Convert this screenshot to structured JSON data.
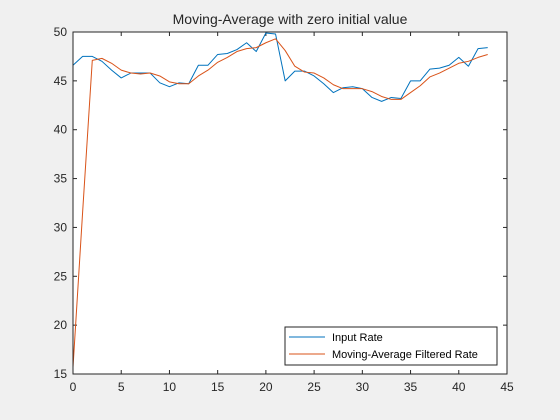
{
  "chart_data": {
    "type": "line",
    "title": "Moving-Average with zero initial value",
    "xlabel": "",
    "ylabel": "",
    "xlim": [
      0,
      45
    ],
    "ylim": [
      15,
      50
    ],
    "xticks": [
      0,
      5,
      10,
      15,
      20,
      25,
      30,
      35,
      40,
      45
    ],
    "yticks": [
      15,
      20,
      25,
      30,
      35,
      40,
      45,
      50
    ],
    "grid": false,
    "legend_position": "bottom-right",
    "series": [
      {
        "name": "Input Rate",
        "color": "#0072BD",
        "x": [
          0,
          1,
          2,
          3,
          4,
          5,
          6,
          7,
          8,
          9,
          10,
          11,
          12,
          13,
          14,
          15,
          16,
          17,
          18,
          19,
          20,
          21,
          22,
          23,
          24,
          25,
          26,
          27,
          28,
          29,
          30,
          31,
          32,
          33,
          34,
          35,
          36,
          37,
          38,
          39,
          40,
          41,
          42,
          43
        ],
        "y": [
          46.6,
          47.5,
          47.5,
          47.0,
          46.1,
          45.3,
          45.8,
          45.8,
          45.8,
          44.8,
          44.4,
          44.8,
          44.7,
          46.6,
          46.6,
          47.7,
          47.8,
          48.2,
          48.9,
          48.0,
          49.9,
          49.8,
          45.0,
          46.0,
          46.0,
          45.5,
          44.7,
          43.8,
          44.3,
          44.4,
          44.2,
          43.3,
          42.9,
          43.3,
          43.2,
          45.0,
          45.0,
          46.2,
          46.3,
          46.6,
          47.4,
          46.5,
          48.3,
          48.4
        ]
      },
      {
        "name": "Moving-Average Filtered Rate",
        "color": "#D95319",
        "x": [
          0,
          1,
          2,
          3,
          4,
          5,
          6,
          7,
          8,
          9,
          10,
          11,
          12,
          13,
          14,
          15,
          16,
          17,
          18,
          19,
          20,
          21,
          22,
          23,
          24,
          25,
          26,
          27,
          28,
          29,
          30,
          31,
          32,
          33,
          34,
          35,
          36,
          37,
          38,
          39,
          40,
          41,
          42,
          43
        ],
        "y": [
          15.7,
          31.6,
          47.1,
          47.3,
          46.8,
          46.1,
          45.8,
          45.7,
          45.8,
          45.5,
          44.9,
          44.7,
          44.7,
          45.5,
          46.1,
          46.9,
          47.4,
          48.0,
          48.3,
          48.4,
          48.9,
          49.3,
          48.1,
          46.5,
          45.9,
          45.8,
          45.3,
          44.6,
          44.2,
          44.2,
          44.2,
          43.9,
          43.4,
          43.1,
          43.1,
          43.8,
          44.5,
          45.4,
          45.8,
          46.3,
          46.8,
          47.0,
          47.4,
          47.7
        ]
      }
    ]
  }
}
